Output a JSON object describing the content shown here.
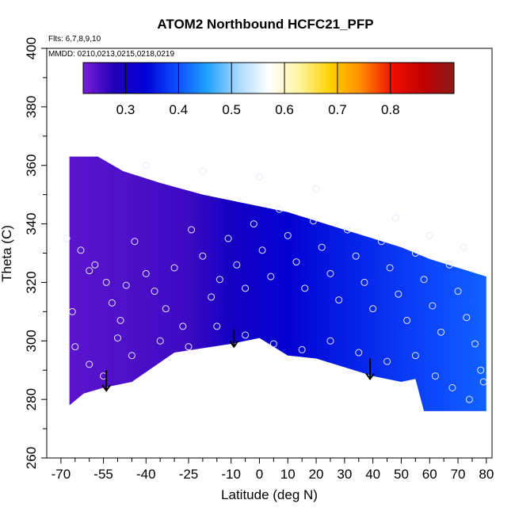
{
  "chart_data": {
    "type": "heatmap",
    "title": "ATOM2 Northbound HCFC21_PFP",
    "annotations": {
      "flights": "Flts: 6,7,8,9,10",
      "dates": "MMDD: 0210,0213,0215,0218,0219"
    },
    "xlabel": "Latitude (deg N)",
    "ylabel": "Theta (C)",
    "xlim": [
      -70,
      80
    ],
    "ylim": [
      260,
      400
    ],
    "x_ticks": [
      -70,
      -55,
      -40,
      -25,
      -10,
      0,
      10,
      20,
      30,
      40,
      50,
      60,
      70,
      80
    ],
    "x_tick_labels": [
      "-70",
      "-55",
      "-40",
      "-25",
      "-10",
      "0",
      "10",
      "20",
      "30",
      "40",
      "50",
      "60",
      "70",
      "80"
    ],
    "y_ticks": [
      260,
      280,
      300,
      320,
      340,
      360,
      380,
      400
    ],
    "y_tick_labels": [
      "260",
      "280",
      "300",
      "320",
      "340",
      "360",
      "380",
      "400"
    ],
    "colorbar": {
      "range": [
        0.22,
        0.92
      ],
      "ticks": [
        0.3,
        0.4,
        0.5,
        0.6,
        0.7,
        0.8
      ],
      "tick_labels": [
        "0.3",
        "0.4",
        "0.5",
        "0.6",
        "0.7",
        "0.8"
      ],
      "colors": [
        "#7a1fd8",
        "#2000b8",
        "#0000d6",
        "#0c4cff",
        "#1ea0ff",
        "#a8d8ff",
        "#ffffff",
        "#fff4a0",
        "#ffd200",
        "#ff8a00",
        "#f01000",
        "#c00000",
        "#8b1a1a"
      ]
    },
    "field": {
      "upper_boundary": [
        [
          -67,
          363
        ],
        [
          -57,
          363
        ],
        [
          -48,
          358
        ],
        [
          -35,
          354
        ],
        [
          -20,
          350
        ],
        [
          -10,
          348
        ],
        [
          0,
          346
        ],
        [
          10,
          344
        ],
        [
          20,
          341
        ],
        [
          30,
          338
        ],
        [
          40,
          335
        ],
        [
          50,
          332
        ],
        [
          60,
          328
        ],
        [
          70,
          325
        ],
        [
          80,
          322
        ]
      ],
      "lower_boundary": [
        [
          -67,
          278
        ],
        [
          -62,
          282
        ],
        [
          -55,
          284
        ],
        [
          -45,
          286
        ],
        [
          -30,
          296
        ],
        [
          -10,
          299
        ],
        [
          0,
          301
        ],
        [
          10,
          295
        ],
        [
          20,
          294
        ],
        [
          30,
          291
        ],
        [
          40,
          288
        ],
        [
          50,
          286
        ],
        [
          55,
          287
        ],
        [
          58,
          276
        ],
        [
          80,
          276
        ]
      ],
      "value_stops": [
        [
          -67,
          0.24
        ],
        [
          -45,
          0.25
        ],
        [
          -25,
          0.26
        ],
        [
          -10,
          0.3
        ],
        [
          10,
          0.33
        ],
        [
          30,
          0.36
        ],
        [
          50,
          0.38
        ],
        [
          70,
          0.4
        ],
        [
          80,
          0.41
        ]
      ]
    },
    "sample_points": [
      [
        -68,
        335
      ],
      [
        -66,
        310
      ],
      [
        -63,
        331
      ],
      [
        -60,
        324
      ],
      [
        -58,
        326
      ],
      [
        -54,
        320
      ],
      [
        -52,
        313
      ],
      [
        -49,
        307
      ],
      [
        -47,
        319
      ],
      [
        -44,
        334
      ],
      [
        -40,
        323
      ],
      [
        -37,
        317
      ],
      [
        -33,
        311
      ],
      [
        -30,
        325
      ],
      [
        -27,
        305
      ],
      [
        -24,
        338
      ],
      [
        -20,
        329
      ],
      [
        -17,
        315
      ],
      [
        -14,
        321
      ],
      [
        -11,
        335
      ],
      [
        -8,
        326
      ],
      [
        -5,
        318
      ],
      [
        -2,
        340
      ],
      [
        1,
        331
      ],
      [
        4,
        322
      ],
      [
        7,
        345
      ],
      [
        10,
        336
      ],
      [
        13,
        327
      ],
      [
        16,
        318
      ],
      [
        19,
        341
      ],
      [
        22,
        332
      ],
      [
        25,
        323
      ],
      [
        28,
        314
      ],
      [
        31,
        338
      ],
      [
        34,
        329
      ],
      [
        37,
        320
      ],
      [
        40,
        311
      ],
      [
        43,
        334
      ],
      [
        46,
        325
      ],
      [
        49,
        316
      ],
      [
        52,
        307
      ],
      [
        55,
        330
      ],
      [
        58,
        321
      ],
      [
        61,
        312
      ],
      [
        64,
        303
      ],
      [
        67,
        326
      ],
      [
        70,
        317
      ],
      [
        73,
        308
      ],
      [
        76,
        299
      ],
      [
        78,
        290
      ],
      [
        -65,
        298
      ],
      [
        -60,
        292
      ],
      [
        -55,
        288
      ],
      [
        -50,
        301
      ],
      [
        -45,
        295
      ],
      [
        -35,
        300
      ],
      [
        -25,
        298
      ],
      [
        -15,
        305
      ],
      [
        -5,
        302
      ],
      [
        5,
        299
      ],
      [
        15,
        297
      ],
      [
        25,
        300
      ],
      [
        35,
        296
      ],
      [
        45,
        293
      ],
      [
        55,
        295
      ],
      [
        62,
        288
      ],
      [
        68,
        284
      ],
      [
        74,
        280
      ],
      [
        79,
        286
      ],
      [
        48,
        342
      ],
      [
        60,
        336
      ],
      [
        72,
        332
      ],
      [
        20,
        352
      ],
      [
        0,
        356
      ],
      [
        -20,
        358
      ],
      [
        -40,
        360
      ]
    ],
    "arrows": [
      {
        "x": -54,
        "y_top": 290,
        "y_bottom": 283
      },
      {
        "x": -9,
        "y_top": 304,
        "y_bottom": 298
      },
      {
        "x": 39,
        "y_top": 294,
        "y_bottom": 287
      }
    ]
  }
}
